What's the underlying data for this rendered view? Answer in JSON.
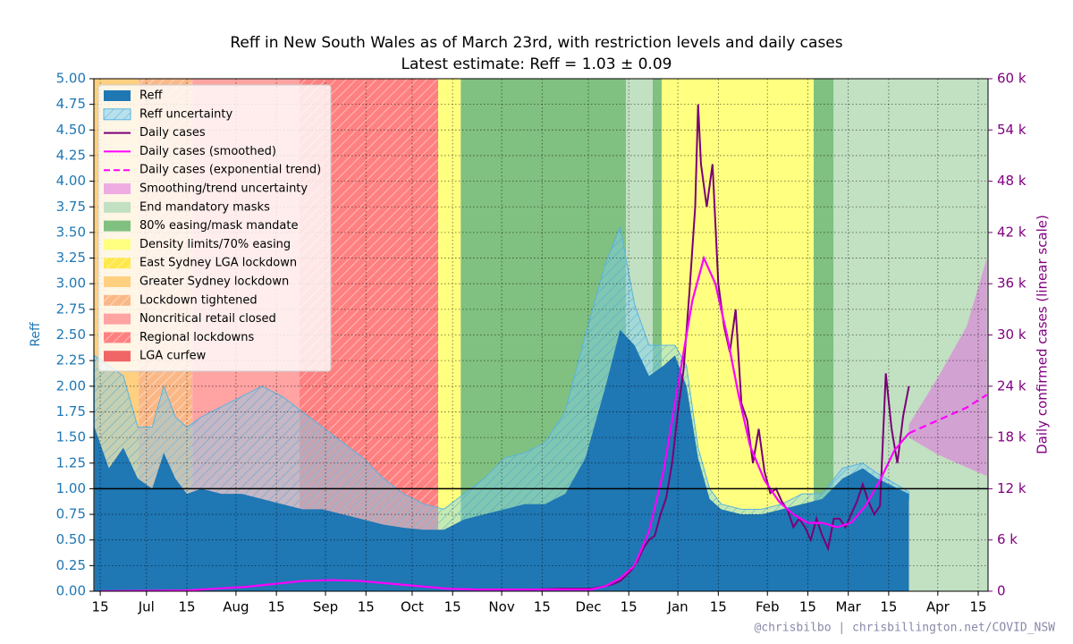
{
  "chart_data": {
    "type": "line",
    "title": "Reff in New South Wales as of March 23rd, with restriction levels and daily cases",
    "subtitle": "Latest estimate: Reff = 1.03 ± 0.09",
    "ylabel": "Reff",
    "y2label": "Daily confirmed cases (linear scale)",
    "watermark": "@chrisbilbo | chrisbillington.net/COVID_NSW",
    "grid": true,
    "legend": "upper left",
    "hline": 1,
    "xlim": [
      -2.2,
      307.4
    ],
    "xticks": [
      {
        "value": 0,
        "label": "15"
      },
      {
        "value": 16,
        "label": "Jul"
      },
      {
        "value": 30,
        "label": "15"
      },
      {
        "value": 47,
        "label": "Aug"
      },
      {
        "value": 61,
        "label": "15"
      },
      {
        "value": 78,
        "label": "Sep"
      },
      {
        "value": 92,
        "label": "15"
      },
      {
        "value": 108,
        "label": "Oct"
      },
      {
        "value": 122,
        "label": "15"
      },
      {
        "value": 139,
        "label": "Nov"
      },
      {
        "value": 153,
        "label": "15"
      },
      {
        "value": 169,
        "label": "Dec"
      },
      {
        "value": 183,
        "label": "15"
      },
      {
        "value": 200,
        "label": "Jan"
      },
      {
        "value": 214,
        "label": "15"
      },
      {
        "value": 231,
        "label": "Feb"
      },
      {
        "value": 245,
        "label": "15"
      },
      {
        "value": 259,
        "label": "Mar"
      },
      {
        "value": 273,
        "label": "15"
      },
      {
        "value": 290,
        "label": "Apr"
      },
      {
        "value": 304,
        "label": "15"
      }
    ],
    "ylim": [
      0,
      5
    ],
    "yticks": [
      {
        "value": 0,
        "label": "0.00"
      },
      {
        "value": 0.25,
        "label": "0.25"
      },
      {
        "value": 0.5,
        "label": "0.50"
      },
      {
        "value": 0.75,
        "label": "0.75"
      },
      {
        "value": 1,
        "label": "1.00"
      },
      {
        "value": 1.25,
        "label": "1.25"
      },
      {
        "value": 1.5,
        "label": "1.50"
      },
      {
        "value": 1.75,
        "label": "1.75"
      },
      {
        "value": 2,
        "label": "2.00"
      },
      {
        "value": 2.25,
        "label": "2.25"
      },
      {
        "value": 2.5,
        "label": "2.50"
      },
      {
        "value": 2.75,
        "label": "2.75"
      },
      {
        "value": 3,
        "label": "3.00"
      },
      {
        "value": 3.25,
        "label": "3.25"
      },
      {
        "value": 3.5,
        "label": "3.50"
      },
      {
        "value": 3.75,
        "label": "3.75"
      },
      {
        "value": 4,
        "label": "4.00"
      },
      {
        "value": 4.25,
        "label": "4.25"
      },
      {
        "value": 4.5,
        "label": "4.50"
      },
      {
        "value": 4.75,
        "label": "4.75"
      },
      {
        "value": 5,
        "label": "5.00"
      }
    ],
    "y2lim": [
      0,
      60000
    ],
    "y2ticks": [
      0,
      {
        "value": 6000,
        "label": "6 k"
      },
      {
        "value": 12000,
        "label": "12 k"
      },
      {
        "value": 18000,
        "label": "18 k"
      },
      {
        "value": 24000,
        "label": "24 k"
      },
      {
        "value": 30000,
        "label": "30 k"
      },
      {
        "value": 36000,
        "label": "36 k"
      },
      {
        "value": 42000,
        "label": "42 k"
      },
      {
        "value": 48000,
        "label": "48 k"
      },
      {
        "value": 54000,
        "label": "54 k"
      },
      {
        "value": 60000,
        "label": "60 k"
      }
    ],
    "series": [
      {
        "name": "Reff",
        "style": "area",
        "color": "#1f77b4",
        "x": [
          -2,
          3,
          8,
          13,
          18,
          22,
          26,
          30,
          35,
          42,
          49,
          56,
          63,
          70,
          77,
          84,
          91,
          98,
          105,
          112,
          119,
          126,
          133,
          140,
          147,
          154,
          161,
          168,
          175,
          180,
          185,
          190,
          195,
          199,
          203,
          207,
          211,
          215,
          222,
          229,
          236,
          243,
          250,
          257,
          264,
          269,
          280
        ],
        "values": [
          1.6,
          1.2,
          1.4,
          1.1,
          1.0,
          1.35,
          1.1,
          0.95,
          1.0,
          0.95,
          0.95,
          0.9,
          0.85,
          0.8,
          0.8,
          0.75,
          0.7,
          0.65,
          0.62,
          0.6,
          0.6,
          0.7,
          0.75,
          0.8,
          0.85,
          0.85,
          0.95,
          1.3,
          2.0,
          2.55,
          2.4,
          2.1,
          2.2,
          2.3,
          2.0,
          1.3,
          0.9,
          0.8,
          0.75,
          0.75,
          0.8,
          0.85,
          0.9,
          1.1,
          1.2,
          1.1,
          0.95
        ]
      },
      {
        "name": "Reff uncertainty",
        "style": "band",
        "hatch": true,
        "color": "#7fd0f0",
        "x": [
          -2,
          3,
          8,
          13,
          18,
          22,
          26,
          30,
          35,
          42,
          49,
          56,
          63,
          70,
          77,
          84,
          91,
          98,
          105,
          112,
          119,
          126,
          133,
          140,
          147,
          154,
          161,
          168,
          175,
          180,
          185,
          190,
          195,
          199,
          203,
          207,
          211,
          215,
          222,
          229,
          236,
          243,
          250,
          257,
          264,
          269,
          280
        ],
        "lower": [
          1.3,
          0.9,
          1.1,
          0.9,
          0.8,
          1.0,
          0.85,
          0.75,
          0.8,
          0.75,
          0.75,
          0.7,
          0.65,
          0.6,
          0.6,
          0.55,
          0.5,
          0.5,
          0.48,
          0.47,
          0.5,
          0.55,
          0.6,
          0.65,
          0.7,
          0.7,
          0.8,
          1.0,
          1.5,
          2.2,
          2.1,
          1.9,
          2.0,
          2.15,
          1.85,
          1.2,
          0.82,
          0.75,
          0.7,
          0.7,
          0.75,
          0.8,
          0.85,
          1.0,
          1.1,
          1.0,
          0.9
        ],
        "upper": [
          2.3,
          2.2,
          2.1,
          1.6,
          1.6,
          2.0,
          1.7,
          1.6,
          1.7,
          1.8,
          1.9,
          2.0,
          1.9,
          1.75,
          1.6,
          1.45,
          1.3,
          1.1,
          0.95,
          0.85,
          0.8,
          0.95,
          1.1,
          1.3,
          1.35,
          1.45,
          1.75,
          2.5,
          3.2,
          3.55,
          2.8,
          2.4,
          2.4,
          2.4,
          2.2,
          1.4,
          1.0,
          0.85,
          0.8,
          0.8,
          0.85,
          0.95,
          0.95,
          1.2,
          1.25,
          1.15,
          0.97
        ]
      },
      {
        "name": "Daily cases",
        "style": "step",
        "axis": "y2",
        "color": "#7a0077",
        "x": [
          150,
          160,
          170,
          175,
          178,
          180,
          182,
          184,
          186,
          188,
          190,
          192,
          194,
          196,
          198,
          200,
          202,
          204,
          206,
          207,
          208,
          210,
          212,
          214,
          216,
          218,
          220,
          222,
          224,
          226,
          228,
          230,
          232,
          234,
          236,
          238,
          240,
          242,
          244,
          246,
          248,
          250,
          252,
          254,
          256,
          258,
          260,
          262,
          264,
          266,
          268,
          270,
          272,
          274,
          276,
          278,
          280
        ],
        "values": [
          200,
          300,
          300,
          600,
          900,
          1200,
          1800,
          2500,
          3500,
          5000,
          6000,
          6500,
          9000,
          11000,
          15000,
          21000,
          26000,
          35000,
          45000,
          57000,
          50000,
          45000,
          50000,
          36000,
          31000,
          28000,
          33000,
          22000,
          20000,
          15000,
          19000,
          14000,
          11500,
          12000,
          10500,
          9500,
          7500,
          8500,
          7500,
          6000,
          8500,
          6500,
          5000,
          8500,
          8500,
          7500,
          9000,
          10500,
          12500,
          10500,
          9000,
          10000,
          25500,
          19000,
          15000,
          20500,
          24000
        ]
      },
      {
        "name": "Daily cases (smoothed)",
        "style": "line",
        "axis": "y2",
        "color": "#ff00ff",
        "x": [
          0,
          30,
          50,
          70,
          80,
          90,
          100,
          110,
          120,
          130,
          150,
          170,
          175,
          180,
          185,
          190,
          195,
          200,
          205,
          209,
          213,
          217,
          221,
          225,
          230,
          235,
          240,
          245,
          250,
          255,
          260,
          265,
          270,
          275,
          280
        ],
        "values": [
          0,
          100,
          500,
          1200,
          1300,
          1200,
          900,
          600,
          300,
          200,
          200,
          200,
          600,
          1500,
          3000,
          7000,
          14000,
          24000,
          34000,
          39000,
          36000,
          30000,
          23000,
          17000,
          13000,
          10500,
          9000,
          8000,
          8000,
          7500,
          8000,
          10000,
          13000,
          16500,
          18500
        ]
      },
      {
        "name": "Daily cases (exponential trend)",
        "style": "dashed",
        "axis": "y2",
        "color": "#ff00ff",
        "x": [
          280,
          290,
          300,
          307
        ],
        "values": [
          18500,
          20000,
          21500,
          23000
        ]
      },
      {
        "name": "Smoothing/trend uncertainty",
        "style": "band",
        "axis": "y2",
        "color": "#e070e0",
        "x": [
          280,
          290,
          300,
          307
        ],
        "lower": [
          18000,
          16000,
          14500,
          13500
        ],
        "upper": [
          19500,
          25000,
          31000,
          39000
        ]
      }
    ],
    "restrictions": [
      {
        "name": "End mandatory masks",
        "color": "#c2e0c2",
        "spans": [
          [
            182,
            191.3
          ],
          [
            253.9,
            307.4
          ]
        ]
      },
      {
        "name": "80% easing/mask mandate",
        "color": "#80c080",
        "spans": [
          [
            124.8,
            182
          ],
          [
            191.3,
            194.4
          ],
          [
            247,
            253.9
          ]
        ]
      },
      {
        "name": "Density limits/70% easing",
        "color": "#ffff80",
        "spans": [
          [
            117,
            124.8
          ],
          [
            194.4,
            247
          ]
        ]
      },
      {
        "name": "East Sydney LGA lockdown",
        "color": "#ffe84a",
        "hatch": true,
        "spans": []
      },
      {
        "name": "Greater Sydney lockdown",
        "color": "#ffd080",
        "spans": [
          [
            -2.2,
            13.3
          ]
        ]
      },
      {
        "name": "Lockdown tightened",
        "color": "#fbb887",
        "hatch": true,
        "spans": [
          [
            13.3,
            31.9
          ]
        ]
      },
      {
        "name": "Noncritical retail closed",
        "color": "#ffa3a3",
        "spans": [
          [
            31.9,
            69
          ]
        ]
      },
      {
        "name": "Regional lockdowns",
        "color": "#ff8080",
        "hatch": true,
        "spans": [
          [
            69,
            117
          ]
        ]
      },
      {
        "name": "LGA curfew",
        "color": "#f06666",
        "spans": []
      }
    ]
  }
}
